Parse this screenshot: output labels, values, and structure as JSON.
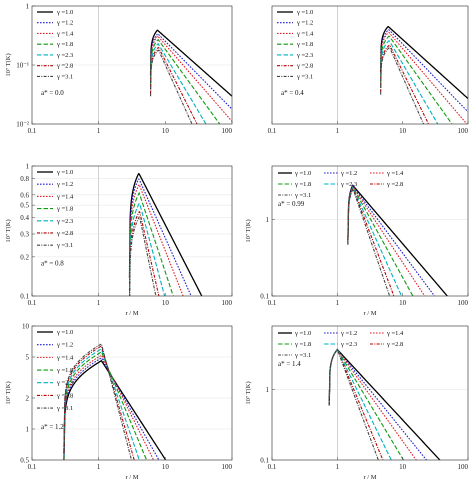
{
  "styles": [
    {
      "color": "#000000",
      "dash": ""
    },
    {
      "color": "#1f1fd0",
      "dash": "1.6,1.4"
    },
    {
      "color": "#e0202a",
      "dash": "1.6,1.4"
    },
    {
      "color": "#119911",
      "dash": "4.5,2"
    },
    {
      "color": "#00b0c0",
      "dash": "4.5,2"
    },
    {
      "color": "#b80000",
      "dash": "3,1.3,1,1.3"
    },
    {
      "color": "#444444",
      "dash": "3,1.3,1,1.3"
    }
  ],
  "chart_data": [
    {
      "type": "line",
      "scale": "log-log",
      "ylabel": "10⁷ T(K)",
      "xlabel": "",
      "xlim": [
        0.1,
        100
      ],
      "ylim": [
        0.01,
        1
      ],
      "grid_x": [
        1
      ],
      "xticks": [
        "0.1",
        "1",
        "10",
        "100"
      ],
      "yticks": [
        "10⁻²",
        "10⁻¹",
        "1"
      ],
      "annotation": "a* = 0.0",
      "legend": "inside-left",
      "series": [
        {
          "name": "γ =1.0",
          "r_in": 6.0,
          "peak_r": 7.6,
          "peak": 0.39,
          "slope": 1.0
        },
        {
          "name": "γ =1.2",
          "r_in": 6.0,
          "peak_r": 7.7,
          "peak": 0.34,
          "slope": 1.15
        },
        {
          "name": "γ =1.4",
          "r_in": 6.0,
          "peak_r": 7.7,
          "peak": 0.31,
          "slope": 1.3
        },
        {
          "name": "γ =1.8",
          "r_in": 6.0,
          "peak_r": 7.8,
          "peak": 0.27,
          "slope": 1.55
        },
        {
          "name": "γ =2.3",
          "r_in": 6.0,
          "peak_r": 7.8,
          "peak": 0.23,
          "slope": 1.9
        },
        {
          "name": "γ =2.8",
          "r_in": 6.0,
          "peak_r": 7.9,
          "peak": 0.2,
          "slope": 2.25
        },
        {
          "name": "γ =3.1",
          "r_in": 6.0,
          "peak_r": 7.9,
          "peak": 0.18,
          "slope": 2.5
        }
      ]
    },
    {
      "type": "line",
      "scale": "log-log",
      "ylabel": "",
      "xlabel": "",
      "xlim": [
        0.1,
        100
      ],
      "ylim": [
        0.01,
        1
      ],
      "grid_x": [
        1
      ],
      "xticks": [
        "0.1",
        "1",
        "10",
        "100"
      ],
      "yticks": [],
      "annotation": "a* = 0.4",
      "legend": "inside-left",
      "series": [
        {
          "name": "γ =1.0",
          "r_in": 4.6,
          "peak_r": 6.0,
          "peak": 0.45,
          "slope": 1.0
        },
        {
          "name": "γ =1.2",
          "r_in": 4.6,
          "peak_r": 6.1,
          "peak": 0.4,
          "slope": 1.15
        },
        {
          "name": "γ =1.4",
          "r_in": 4.6,
          "peak_r": 6.1,
          "peak": 0.36,
          "slope": 1.3
        },
        {
          "name": "γ =1.8",
          "r_in": 4.6,
          "peak_r": 6.2,
          "peak": 0.31,
          "slope": 1.55
        },
        {
          "name": "γ =2.3",
          "r_in": 4.6,
          "peak_r": 6.2,
          "peak": 0.26,
          "slope": 1.9
        },
        {
          "name": "γ =2.8",
          "r_in": 4.6,
          "peak_r": 6.3,
          "peak": 0.22,
          "slope": 2.25
        },
        {
          "name": "γ =3.1",
          "r_in": 4.6,
          "peak_r": 6.3,
          "peak": 0.2,
          "slope": 2.5
        }
      ]
    },
    {
      "type": "line",
      "scale": "log-log",
      "ylabel": "10⁷ T(K)",
      "xlabel": "r / M",
      "xlim": [
        0.1,
        100
      ],
      "ylim": [
        0.1,
        1
      ],
      "grid_x": [
        1
      ],
      "xticks": [
        "0.1",
        "1",
        "10",
        "100"
      ],
      "yticks": [
        "0.1",
        "0.2",
        "0.3",
        "0.4",
        "0.5",
        "0.6",
        "0.8",
        "1"
      ],
      "annotation": "a* = 0.8",
      "legend": "inside-left",
      "series": [
        {
          "name": "γ =1.0",
          "r_in": 2.9,
          "peak_r": 4.0,
          "peak": 0.88,
          "slope": 1.0
        },
        {
          "name": "γ =1.2",
          "r_in": 2.9,
          "peak_r": 4.0,
          "peak": 0.8,
          "slope": 1.15
        },
        {
          "name": "γ =1.4",
          "r_in": 2.9,
          "peak_r": 4.05,
          "peak": 0.72,
          "slope": 1.3
        },
        {
          "name": "γ =1.8",
          "r_in": 2.9,
          "peak_r": 4.05,
          "peak": 0.62,
          "slope": 1.55
        },
        {
          "name": "γ =2.3",
          "r_in": 2.9,
          "peak_r": 4.1,
          "peak": 0.52,
          "slope": 1.9
        },
        {
          "name": "γ =2.8",
          "r_in": 2.9,
          "peak_r": 4.1,
          "peak": 0.45,
          "slope": 2.25
        },
        {
          "name": "γ =3.1",
          "r_in": 2.9,
          "peak_r": 4.1,
          "peak": 0.41,
          "slope": 2.5
        }
      ]
    },
    {
      "type": "line",
      "scale": "log-log",
      "ylabel": "10⁷ T(K)",
      "xlabel": "r / M",
      "xlim": [
        0.1,
        100
      ],
      "ylim": [
        0.1,
        5
      ],
      "grid_x": [
        1
      ],
      "xticks": [
        "0.1",
        "1",
        "10",
        "100"
      ],
      "yticks": [
        "0.1",
        "1"
      ],
      "annotation": "a* = 0.99",
      "legend": "top-three-columns",
      "series": [
        {
          "name": "γ =1.0",
          "r_in": 1.45,
          "peak_r": 1.72,
          "peak": 2.8,
          "slope": 1.0
        },
        {
          "name": "γ =1.2",
          "r_in": 1.45,
          "peak_r": 1.72,
          "peak": 2.75,
          "slope": 1.15
        },
        {
          "name": "γ =1.4",
          "r_in": 1.45,
          "peak_r": 1.72,
          "peak": 2.7,
          "slope": 1.3
        },
        {
          "name": "γ =1.8",
          "r_in": 1.45,
          "peak_r": 1.73,
          "peak": 2.65,
          "slope": 1.55
        },
        {
          "name": "γ =2.3",
          "r_in": 1.45,
          "peak_r": 1.73,
          "peak": 2.6,
          "slope": 1.9
        },
        {
          "name": "γ =2.8",
          "r_in": 1.45,
          "peak_r": 1.74,
          "peak": 2.55,
          "slope": 2.25
        },
        {
          "name": "γ =3.1",
          "r_in": 1.45,
          "peak_r": 1.74,
          "peak": 2.5,
          "slope": 2.5
        }
      ]
    },
    {
      "type": "line",
      "scale": "log-log",
      "ylabel": "10⁷ T(K)",
      "xlabel": "r / M",
      "xlim": [
        0.1,
        100
      ],
      "ylim": [
        0.5,
        10
      ],
      "grid_x": [
        1
      ],
      "xticks": [
        "0.1",
        "1",
        "10",
        "100"
      ],
      "yticks": [
        "0.5",
        "1",
        "2",
        "5",
        "10"
      ],
      "annotation": "a* = 1.2",
      "legend": "inside-left",
      "series": [
        {
          "name": "γ =1.0",
          "r_in": 0.3,
          "peak_r": 1.1,
          "peak": 4.6,
          "slope": 1.0
        },
        {
          "name": "γ =1.2",
          "r_in": 0.3,
          "peak_r": 1.1,
          "peak": 4.9,
          "slope": 1.15
        },
        {
          "name": "γ =1.4",
          "r_in": 0.3,
          "peak_r": 1.1,
          "peak": 5.2,
          "slope": 1.3
        },
        {
          "name": "γ =1.8",
          "r_in": 0.3,
          "peak_r": 1.1,
          "peak": 5.6,
          "slope": 1.55
        },
        {
          "name": "γ =2.3",
          "r_in": 0.3,
          "peak_r": 1.1,
          "peak": 6.0,
          "slope": 1.9
        },
        {
          "name": "γ =2.8",
          "r_in": 0.3,
          "peak_r": 1.1,
          "peak": 6.4,
          "slope": 2.25
        },
        {
          "name": "γ =3.1",
          "r_in": 0.3,
          "peak_r": 1.1,
          "peak": 6.7,
          "slope": 2.5
        }
      ]
    },
    {
      "type": "line",
      "scale": "log-log",
      "ylabel": "10⁷ T(K)",
      "xlabel": "r / M",
      "xlim": [
        0.1,
        100
      ],
      "ylim": [
        0.1,
        8
      ],
      "grid_x": [
        1
      ],
      "xticks": [
        "0.1",
        "1",
        "10",
        "100"
      ],
      "yticks": [
        "0.1",
        "1"
      ],
      "annotation": "a* = 1.4",
      "legend": "top-three-columns",
      "series": [
        {
          "name": "γ =1.0",
          "r_in": 0.75,
          "peak_r": 1.0,
          "peak": 3.7,
          "slope": 1.0
        },
        {
          "name": "γ =1.2",
          "r_in": 0.75,
          "peak_r": 1.0,
          "peak": 3.7,
          "slope": 1.15
        },
        {
          "name": "γ =1.4",
          "r_in": 0.75,
          "peak_r": 1.0,
          "peak": 3.7,
          "slope": 1.3
        },
        {
          "name": "γ =1.8",
          "r_in": 0.75,
          "peak_r": 1.0,
          "peak": 3.7,
          "slope": 1.55
        },
        {
          "name": "γ =2.3",
          "r_in": 0.75,
          "peak_r": 1.0,
          "peak": 3.7,
          "slope": 1.9
        },
        {
          "name": "γ =2.8",
          "r_in": 0.75,
          "peak_r": 1.0,
          "peak": 3.7,
          "slope": 2.25
        },
        {
          "name": "γ =3.1",
          "r_in": 0.75,
          "peak_r": 1.0,
          "peak": 3.7,
          "slope": 2.5
        }
      ]
    }
  ]
}
